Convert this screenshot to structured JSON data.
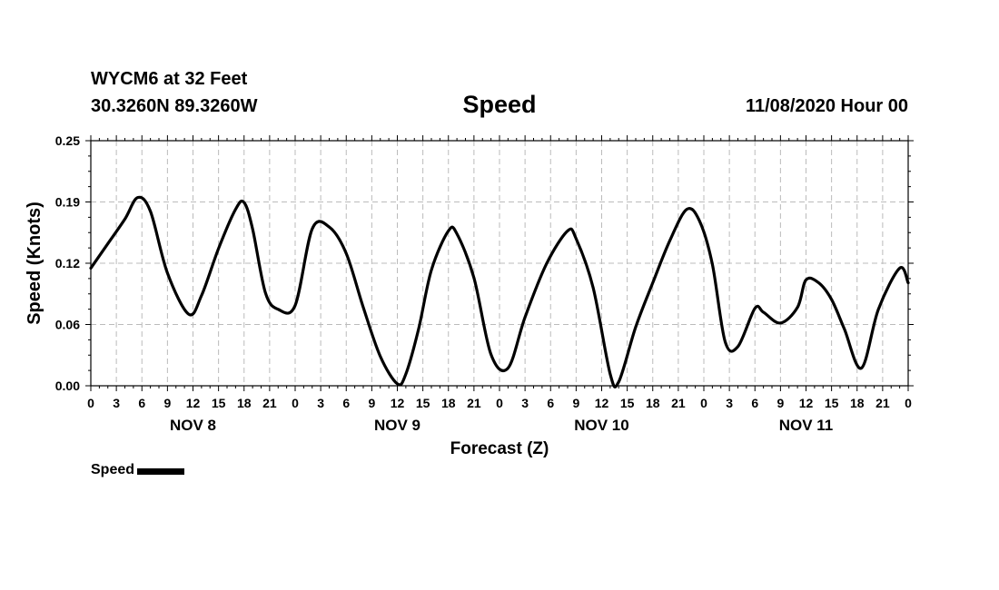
{
  "header": {
    "station": "WYCM6 at 32 Feet",
    "coords": "30.3260N 89.3260W",
    "title": "Speed",
    "datetime": "11/08/2020 Hour 00"
  },
  "legend": {
    "label": "Speed",
    "color": "#000000"
  },
  "chart_data": {
    "type": "line",
    "title": "Speed",
    "xlabel": "Forecast (Z)",
    "ylabel": "Speed (Knots)",
    "x_unit": "forecast hour",
    "xlim": [
      0,
      96
    ],
    "ylim": [
      0,
      0.25
    ],
    "y_ticks": [
      "0.00",
      "0.06",
      "0.12",
      "0.19",
      "0.25"
    ],
    "x_tick_step_hours": 3,
    "x_tick_labels": [
      "0",
      "3",
      "6",
      "9",
      "12",
      "15",
      "18",
      "21",
      "0",
      "3",
      "6",
      "9",
      "12",
      "15",
      "18",
      "21",
      "0",
      "3",
      "6",
      "9",
      "12",
      "15",
      "18",
      "21",
      "0",
      "3",
      "6",
      "9",
      "12",
      "15",
      "18",
      "21",
      "0"
    ],
    "day_labels": [
      {
        "label": "NOV 8",
        "hour": 12
      },
      {
        "label": "NOV 9",
        "hour": 36
      },
      {
        "label": "NOV 10",
        "hour": 60
      },
      {
        "label": "NOV 11",
        "hour": 84
      }
    ],
    "grid": true,
    "legend_position": "bottom-left",
    "series": [
      {
        "name": "Speed",
        "color": "#000000",
        "x": [
          0,
          2,
          4,
          5.5,
          7,
          9,
          11.5,
          13,
          15,
          17,
          18,
          19,
          20.5,
          22,
          24,
          26,
          28,
          30,
          32,
          34,
          36,
          37,
          38.5,
          40,
          42,
          43,
          45,
          47,
          49,
          51,
          53.5,
          56,
          57,
          59,
          61,
          62,
          64,
          66,
          68,
          70,
          71.5,
          73,
          74.5,
          76,
          78,
          79,
          81,
          83,
          84,
          85.5,
          87,
          88.5,
          90.5,
          92.5,
          95,
          96
        ],
        "y": [
          0.12,
          0.145,
          0.17,
          0.192,
          0.178,
          0.115,
          0.073,
          0.092,
          0.14,
          0.18,
          0.187,
          0.16,
          0.095,
          0.078,
          0.082,
          0.16,
          0.162,
          0.135,
          0.08,
          0.03,
          0.002,
          0.012,
          0.058,
          0.118,
          0.158,
          0.155,
          0.11,
          0.032,
          0.018,
          0.07,
          0.124,
          0.158,
          0.15,
          0.1,
          0.012,
          0.004,
          0.06,
          0.105,
          0.148,
          0.18,
          0.168,
          0.124,
          0.045,
          0.04,
          0.079,
          0.075,
          0.064,
          0.08,
          0.108,
          0.105,
          0.088,
          0.058,
          0.018,
          0.078,
          0.12,
          0.105
        ]
      }
    ]
  }
}
